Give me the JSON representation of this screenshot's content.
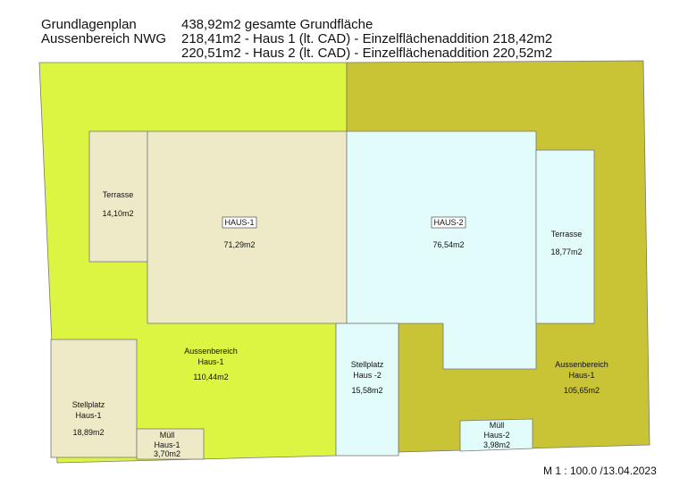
{
  "header": {
    "title_lines": [
      "Grundlagenplan",
      "Aussenbereich NWG"
    ],
    "summary_lines": [
      "438,92m2 gesamte Grundfläche",
      "218,41m2 - Haus 1 (lt. CAD) - Einzelflächenaddition 218,42m2",
      "220,51m2 - Haus 2 (lt. CAD) - Einzelflächenaddition 220,52m2"
    ]
  },
  "areas": [
    {
      "lines": [
        "Terrasse"
      ],
      "area": "14,10m2"
    },
    {
      "lines": [
        "HAUS-1"
      ],
      "area": "71,29m2"
    },
    {
      "lines": [
        "HAUS-2"
      ],
      "area": "76,54m2"
    },
    {
      "lines": [
        "Terrasse"
      ],
      "area": "18,77m2"
    },
    {
      "lines": [
        "Aussenbereich",
        "Haus-1"
      ],
      "area": "110,44m2"
    },
    {
      "lines": [
        "Stellplatz",
        "Haus -2"
      ],
      "area": "15,58m2"
    },
    {
      "lines": [
        "Aussenbereich",
        "Haus-1"
      ],
      "area": "105,65m2"
    },
    {
      "lines": [
        "Stellplatz",
        "Haus-1"
      ],
      "area": "18,89m2"
    },
    {
      "lines": [
        "Müll",
        "Haus-1"
      ],
      "area": "3,70m2"
    },
    {
      "lines": [
        "Müll",
        "Haus-2"
      ],
      "area": "3,98m2"
    }
  ],
  "footer": {
    "scale": "M 1 : 100.0  /13.04.2023"
  }
}
